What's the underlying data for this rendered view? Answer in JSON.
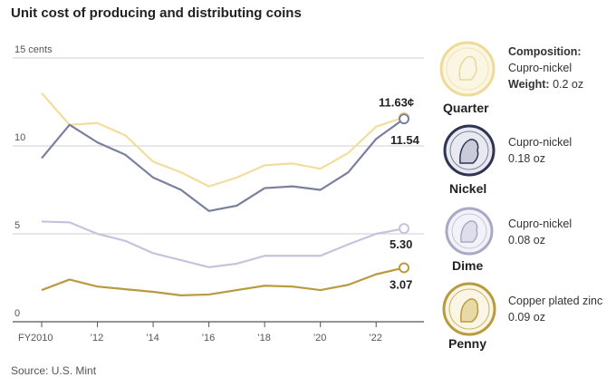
{
  "title": "Unit cost of producing and distributing coins",
  "source": "Source: U.S. Mint",
  "chart_data": {
    "type": "line",
    "title": "Unit cost of producing and distributing coins",
    "ylabel_unit": "cents",
    "ylim": [
      0,
      15
    ],
    "yticks": [
      {
        "value": 15,
        "label": "15 cents"
      },
      {
        "value": 10,
        "label": "10"
      },
      {
        "value": 5,
        "label": "5"
      },
      {
        "value": 0,
        "label": "0"
      }
    ],
    "xlim": [
      2010,
      2023
    ],
    "xticks": [
      {
        "value": 2010,
        "label": "FY2010"
      },
      {
        "value": 2012,
        "label": "’12"
      },
      {
        "value": 2014,
        "label": "’14"
      },
      {
        "value": 2016,
        "label": "’16"
      },
      {
        "value": 2018,
        "label": "’18"
      },
      {
        "value": 2020,
        "label": "’20"
      },
      {
        "value": 2022,
        "label": "’22"
      }
    ],
    "x": [
      2010,
      2011,
      2012,
      2013,
      2014,
      2015,
      2016,
      2017,
      2018,
      2019,
      2020,
      2021,
      2022,
      2023
    ],
    "series": [
      {
        "name": "Quarter",
        "color": "#f3dd9c",
        "values": [
          13.0,
          11.2,
          11.3,
          10.6,
          9.1,
          8.5,
          7.7,
          8.2,
          8.9,
          9.0,
          8.7,
          9.6,
          11.1,
          11.63
        ],
        "end_label": "11.63¢"
      },
      {
        "name": "Nickel",
        "color": "#7a7f9e",
        "values": [
          9.3,
          11.2,
          10.2,
          9.5,
          8.2,
          7.5,
          6.3,
          6.6,
          7.6,
          7.7,
          7.5,
          8.5,
          10.4,
          11.54
        ],
        "end_label": "11.54"
      },
      {
        "name": "Dime",
        "color": "#c4c4dc",
        "values": [
          5.7,
          5.65,
          5.0,
          4.6,
          3.9,
          3.5,
          3.1,
          3.3,
          3.75,
          3.75,
          3.75,
          4.4,
          5.0,
          5.3
        ],
        "end_label": "5.30"
      },
      {
        "name": "Penny",
        "color": "#b89b3f",
        "values": [
          1.8,
          2.4,
          2.0,
          1.85,
          1.7,
          1.5,
          1.55,
          1.8,
          2.05,
          2.0,
          1.8,
          2.1,
          2.7,
          3.07
        ],
        "end_label": "3.07"
      }
    ]
  },
  "coins": [
    {
      "name": "Quarter",
      "composition_label": "Composition:",
      "composition": "Cupro-nickel",
      "weight_label": "Weight:",
      "weight": "0.2 oz",
      "fill": "#fbf6e4",
      "stroke": "#eedb97"
    },
    {
      "name": "Nickel",
      "composition": "Cupro-nickel",
      "weight": "0.18 oz",
      "fill": "#e8e9f1",
      "stroke": "#2f3450"
    },
    {
      "name": "Dime",
      "composition": "Cupro-nickel",
      "weight": "0.08 oz",
      "fill": "#f2f2f8",
      "stroke": "#a9a9c6"
    },
    {
      "name": "Penny",
      "composition": "Copper plated zinc",
      "weight": "0.09 oz",
      "fill": "#faf5e4",
      "stroke": "#b89b3f"
    }
  ]
}
